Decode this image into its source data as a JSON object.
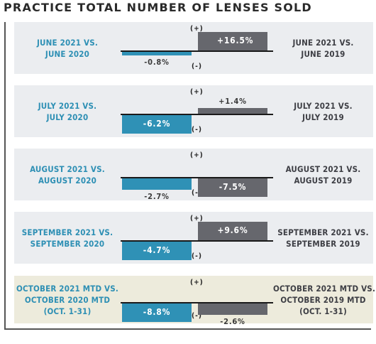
{
  "page": {
    "title": "PRACTICE TOTAL NUMBER OF LENSES SOLD"
  },
  "signs": {
    "plus": "(+)",
    "minus": "(-)"
  },
  "colors": {
    "vs_2020": "#2f91b6",
    "vs_2019": "#66676d",
    "panel_bg": "#ebedf0",
    "highlight_bg": "#edebdc"
  },
  "chart_data": {
    "type": "bar",
    "orientation": "horizontal",
    "categories": [
      "June 2021",
      "July 2021",
      "August 2021",
      "September 2021",
      "October 2021 MTD"
    ],
    "series": [
      {
        "name": "vs. 2020",
        "values": [
          -0.8,
          -6.2,
          -2.7,
          -4.7,
          -8.8
        ]
      },
      {
        "name": "vs. 2019",
        "values": [
          16.5,
          1.4,
          -7.5,
          9.6,
          -2.6
        ]
      }
    ]
  },
  "rows": [
    {
      "left_lines": [
        "JUNE 2021 VS.",
        "JUNE 2020"
      ],
      "right_lines": [
        "JUNE 2021 VS.",
        "JUNE 2019"
      ],
      "v2020": -0.8,
      "v2019": 16.5,
      "label_2020": "-0.8%",
      "label_2019": "+16.5%"
    },
    {
      "left_lines": [
        "JULY 2021 VS.",
        "JULY 2020"
      ],
      "right_lines": [
        "JULY 2021 VS.",
        "JULY 2019"
      ],
      "v2020": -6.2,
      "v2019": 1.4,
      "label_2020": "-6.2%",
      "label_2019": "+1.4%"
    },
    {
      "left_lines": [
        "AUGUST 2021 VS.",
        "AUGUST 2020"
      ],
      "right_lines": [
        "AUGUST 2021 VS.",
        "AUGUST 2019"
      ],
      "v2020": -2.7,
      "v2019": -7.5,
      "label_2020": "-2.7%",
      "label_2019": "-7.5%"
    },
    {
      "left_lines": [
        "SEPTEMBER 2021 VS.",
        "SEPTEMBER 2020"
      ],
      "right_lines": [
        "SEPTEMBER 2021 VS.",
        "SEPTEMBER 2019"
      ],
      "v2020": -4.7,
      "v2019": 9.6,
      "label_2020": "-4.7%",
      "label_2019": "+9.6%"
    },
    {
      "left_lines": [
        "OCTOBER 2021 MTD VS.",
        "OCTOBER 2020 MTD",
        "(OCT. 1-31)"
      ],
      "right_lines": [
        "OCTOBER 2021 MTD VS.",
        "OCTOBER 2019 MTD",
        "(OCT. 1-31)"
      ],
      "v2020": -8.8,
      "v2019": -2.6,
      "label_2020": "-8.8%",
      "label_2019": "-2.6%",
      "highlight": true
    }
  ]
}
